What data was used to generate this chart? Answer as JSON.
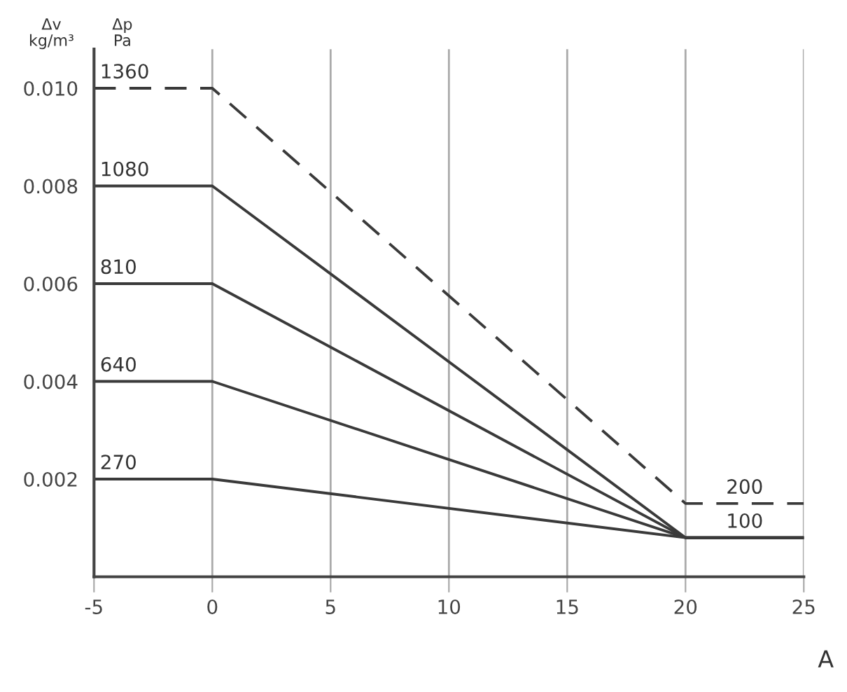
{
  "chart_data": {
    "type": "line",
    "ylabel": "Δv\nkg/m³",
    "xlabel": "A",
    "annotations": [
      "Δp\nPa",
      {
        "text": "200",
        "x": 22.5,
        "y": 0.0015
      },
      {
        "text": "100",
        "x": 22.5,
        "y": 0.0008
      }
    ],
    "xlim": [
      -5,
      25
    ],
    "xticks": [
      -5,
      0,
      5,
      10,
      15,
      20,
      25
    ],
    "ylim": [
      0,
      0.0108
    ],
    "yticks": [
      0.002,
      0.004,
      0.006,
      0.008,
      {
        "value": 0.01,
        "label": "0.010"
      }
    ],
    "grid": "x",
    "marker": "none",
    "series": [
      {
        "name": "1360",
        "color": "#3a3a3a",
        "x": [
          -5,
          0,
          20,
          25
        ],
        "values": [
          0.01,
          0.01,
          0.0015,
          0.0015
        ],
        "line_style": "dashed"
      },
      {
        "name": "1080",
        "color": "#3a3a3a",
        "x": [
          -5,
          0,
          20,
          25
        ],
        "values": [
          0.008,
          0.008,
          0.0008,
          0.0008
        ],
        "line_style": "solid"
      },
      {
        "name": "810",
        "color": "#3a3a3a",
        "x": [
          -5,
          0,
          20,
          25
        ],
        "values": [
          0.006,
          0.006,
          0.0008,
          0.0008
        ],
        "line_style": "solid"
      },
      {
        "name": "640",
        "color": "#3a3a3a",
        "x": [
          -5,
          0,
          20,
          25
        ],
        "values": [
          0.004,
          0.004,
          0.0008,
          0.0008
        ],
        "line_style": "solid"
      },
      {
        "name": "270",
        "color": "#3a3a3a",
        "x": [
          -5,
          0,
          20,
          25
        ],
        "values": [
          0.002,
          0.002,
          0.0008,
          0.0008
        ],
        "line_style": "solid"
      }
    ]
  }
}
